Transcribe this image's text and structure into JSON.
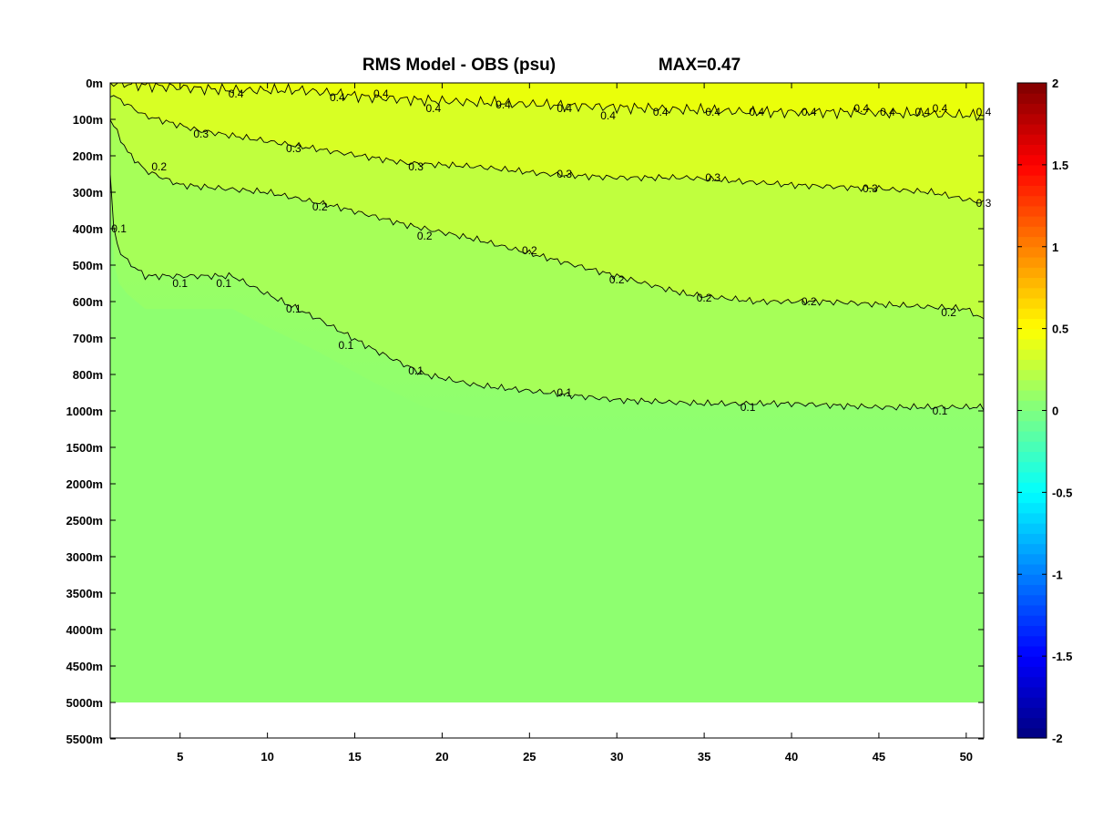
{
  "chart_data": {
    "type": "heatmap",
    "title": "RMS Model - OBS (psu)",
    "max_label": "MAX=0.47",
    "x_ticks": [
      5,
      10,
      15,
      20,
      25,
      30,
      35,
      40,
      45,
      50
    ],
    "xlim": [
      1,
      51
    ],
    "y_tick_labels": [
      "0m",
      "100m",
      "200m",
      "300m",
      "400m",
      "500m",
      "600m",
      "700m",
      "800m",
      "1000m",
      "1500m",
      "2000m",
      "2500m",
      "3000m",
      "3500m",
      "4000m",
      "4500m",
      "5000m",
      "5500m"
    ],
    "depth_data_bottom": "5000m",
    "contour_levels": [
      0.1,
      0.2,
      0.3,
      0.4
    ],
    "contours": [
      {
        "level": 0.4,
        "label": "0.4",
        "x": [
          1,
          4,
          8,
          12,
          16,
          20,
          26,
          32,
          38,
          44,
          51
        ],
        "depth_index": [
          0.0,
          0.1,
          0.2,
          0.2,
          0.4,
          0.5,
          0.6,
          0.7,
          0.8,
          0.8,
          0.9
        ]
      },
      {
        "level": 0.3,
        "label": "0.3",
        "x": [
          1,
          3,
          6,
          10,
          14,
          18,
          22,
          26,
          30,
          34,
          40,
          45,
          48,
          51
        ],
        "depth_index": [
          0.3,
          0.9,
          1.3,
          1.6,
          1.9,
          2.2,
          2.3,
          2.5,
          2.6,
          2.6,
          2.8,
          2.9,
          3.0,
          3.3
        ]
      },
      {
        "level": 0.2,
        "label": "0.2",
        "x": [
          1,
          2,
          3,
          5,
          10,
          14,
          18,
          22,
          26,
          30,
          34,
          38,
          42,
          46,
          50,
          51
        ],
        "depth_index": [
          1.0,
          1.9,
          2.4,
          2.8,
          3.0,
          3.4,
          3.9,
          4.3,
          4.8,
          5.3,
          5.8,
          6.0,
          6.0,
          6.1,
          6.2,
          6.5
        ]
      },
      {
        "level": 0.1,
        "label": "0.1",
        "x": [
          1,
          1.2,
          1.5,
          2,
          3,
          5,
          8,
          10,
          13,
          16,
          19,
          22,
          26,
          30,
          35,
          40,
          45,
          51
        ],
        "depth_index": [
          2.5,
          4.0,
          4.6,
          4.9,
          5.3,
          5.3,
          5.3,
          5.8,
          6.5,
          7.3,
          8.0,
          8.3,
          8.5,
          8.7,
          8.8,
          8.8,
          8.9,
          8.9
        ]
      }
    ],
    "contour_label_positions": [
      {
        "label": "0.4",
        "x": [
          8.2,
          14.0,
          16.5,
          19.5,
          23.5,
          27.0,
          29.5,
          32.5,
          35.5,
          38.0,
          41.0,
          44.0,
          45.5,
          47.5,
          48.5,
          51.0
        ],
        "depth_index": [
          0.3,
          0.4,
          0.3,
          0.7,
          0.6,
          0.7,
          0.9,
          0.8,
          0.8,
          0.8,
          0.8,
          0.7,
          0.8,
          0.8,
          0.7,
          0.8
        ]
      },
      {
        "label": "0.3",
        "x": [
          6.2,
          11.5,
          18.5,
          27.0,
          35.5,
          44.5,
          51.0
        ],
        "depth_index": [
          1.4,
          1.8,
          2.3,
          2.5,
          2.6,
          2.9,
          3.3
        ]
      },
      {
        "label": "0.2",
        "x": [
          3.8,
          13.0,
          19.0,
          25.0,
          30.0,
          35.0,
          41.0,
          49.0
        ],
        "depth_index": [
          2.3,
          3.4,
          4.2,
          4.6,
          5.4,
          5.9,
          6.0,
          6.3
        ]
      },
      {
        "label": "0.1",
        "x": [
          1.5,
          5.0,
          7.5,
          11.5,
          14.5,
          18.5,
          27.0,
          37.5,
          48.5
        ],
        "depth_index": [
          4.0,
          5.5,
          5.5,
          6.2,
          7.2,
          7.9,
          8.5,
          8.9,
          9.0
        ]
      }
    ],
    "colorbar": {
      "range": [
        -2,
        2
      ],
      "ticks": [
        "2",
        "1.5",
        "1",
        "0.5",
        "0",
        "-0.5",
        "-1",
        "-1.5",
        "-2"
      ],
      "colormap": "jet",
      "steps": 64
    },
    "colors": {
      "field_top": "#eaff0a",
      "field_mid": "#c2ff3a",
      "field_deep": "#8eff70",
      "contour": "#000000"
    }
  }
}
